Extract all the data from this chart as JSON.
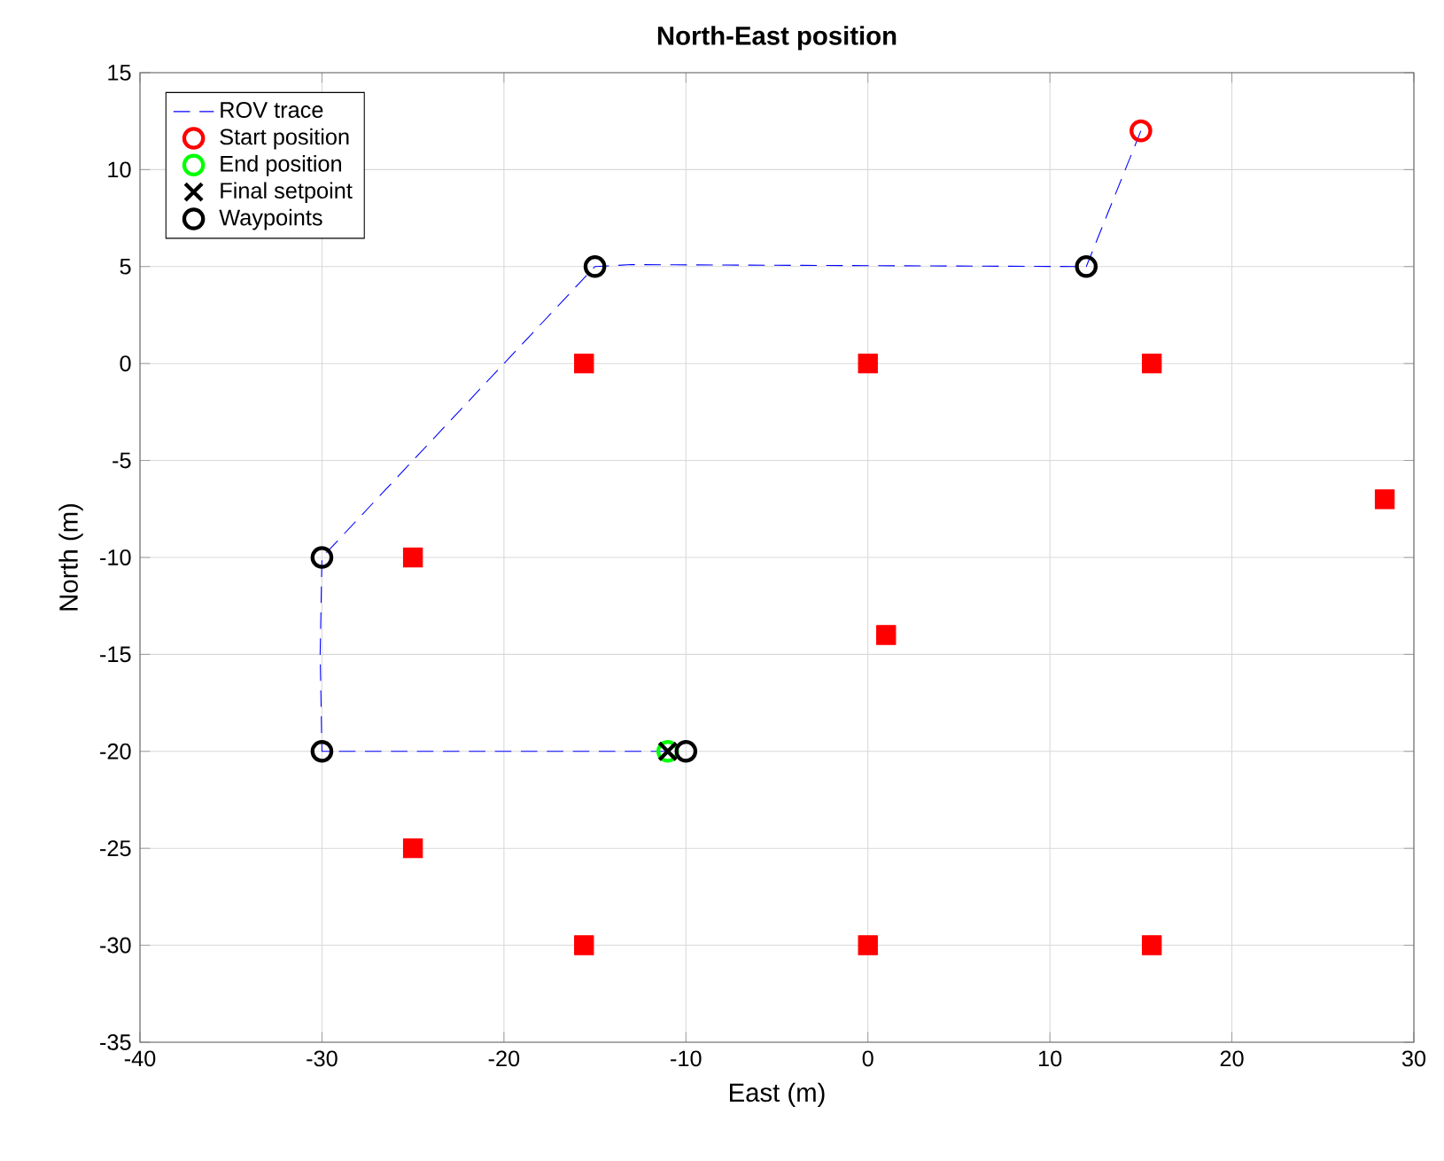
{
  "chart_data": {
    "type": "scatter",
    "title": "North-East position",
    "xlabel": "East (m)",
    "ylabel": "North (m)",
    "xlim": [
      -40,
      30
    ],
    "xticks": [
      -40,
      -30,
      -20,
      -10,
      0,
      10,
      20,
      30
    ],
    "ylim": [
      -35,
      15
    ],
    "yticks": [
      -35,
      -30,
      -25,
      -20,
      -15,
      -10,
      -5,
      0,
      5,
      10,
      15
    ],
    "grid": true,
    "legend": "top left",
    "series": [
      {
        "name": "ROV trace",
        "type": "line",
        "line_style": "dashed",
        "marker": "none",
        "color": "#0000ff",
        "x": [
          15,
          12,
          -13,
          -15,
          -30,
          -30.1,
          -30,
          -20,
          -11
        ],
        "values": [
          12,
          5,
          5.1,
          5,
          -10,
          -15,
          -20,
          -20,
          -20
        ]
      },
      {
        "name": "Start position",
        "marker": "circle",
        "color": "#ff0000",
        "x": [
          15
        ],
        "values": [
          12
        ]
      },
      {
        "name": "End position",
        "marker": "circle",
        "color": "#00ff00",
        "x": [
          -11
        ],
        "values": [
          -20
        ]
      },
      {
        "name": "Final setpoint",
        "marker": "cross",
        "color": "#000000",
        "x": [
          -11
        ],
        "values": [
          -20
        ]
      },
      {
        "name": "Waypoints",
        "marker": "circle",
        "color": "#000000",
        "x": [
          12,
          -15,
          -30,
          -30,
          -10
        ],
        "values": [
          5,
          5,
          -10,
          -20,
          -20
        ]
      },
      {
        "marker": "square",
        "color": "#ff0000",
        "x": [
          -15.6,
          0,
          15.6,
          28.4,
          -25,
          1,
          -25,
          -15.6,
          0,
          15.6
        ],
        "values": [
          0,
          0,
          0,
          -7,
          -10,
          -14,
          -25,
          -30,
          -30,
          -30
        ]
      }
    ]
  }
}
